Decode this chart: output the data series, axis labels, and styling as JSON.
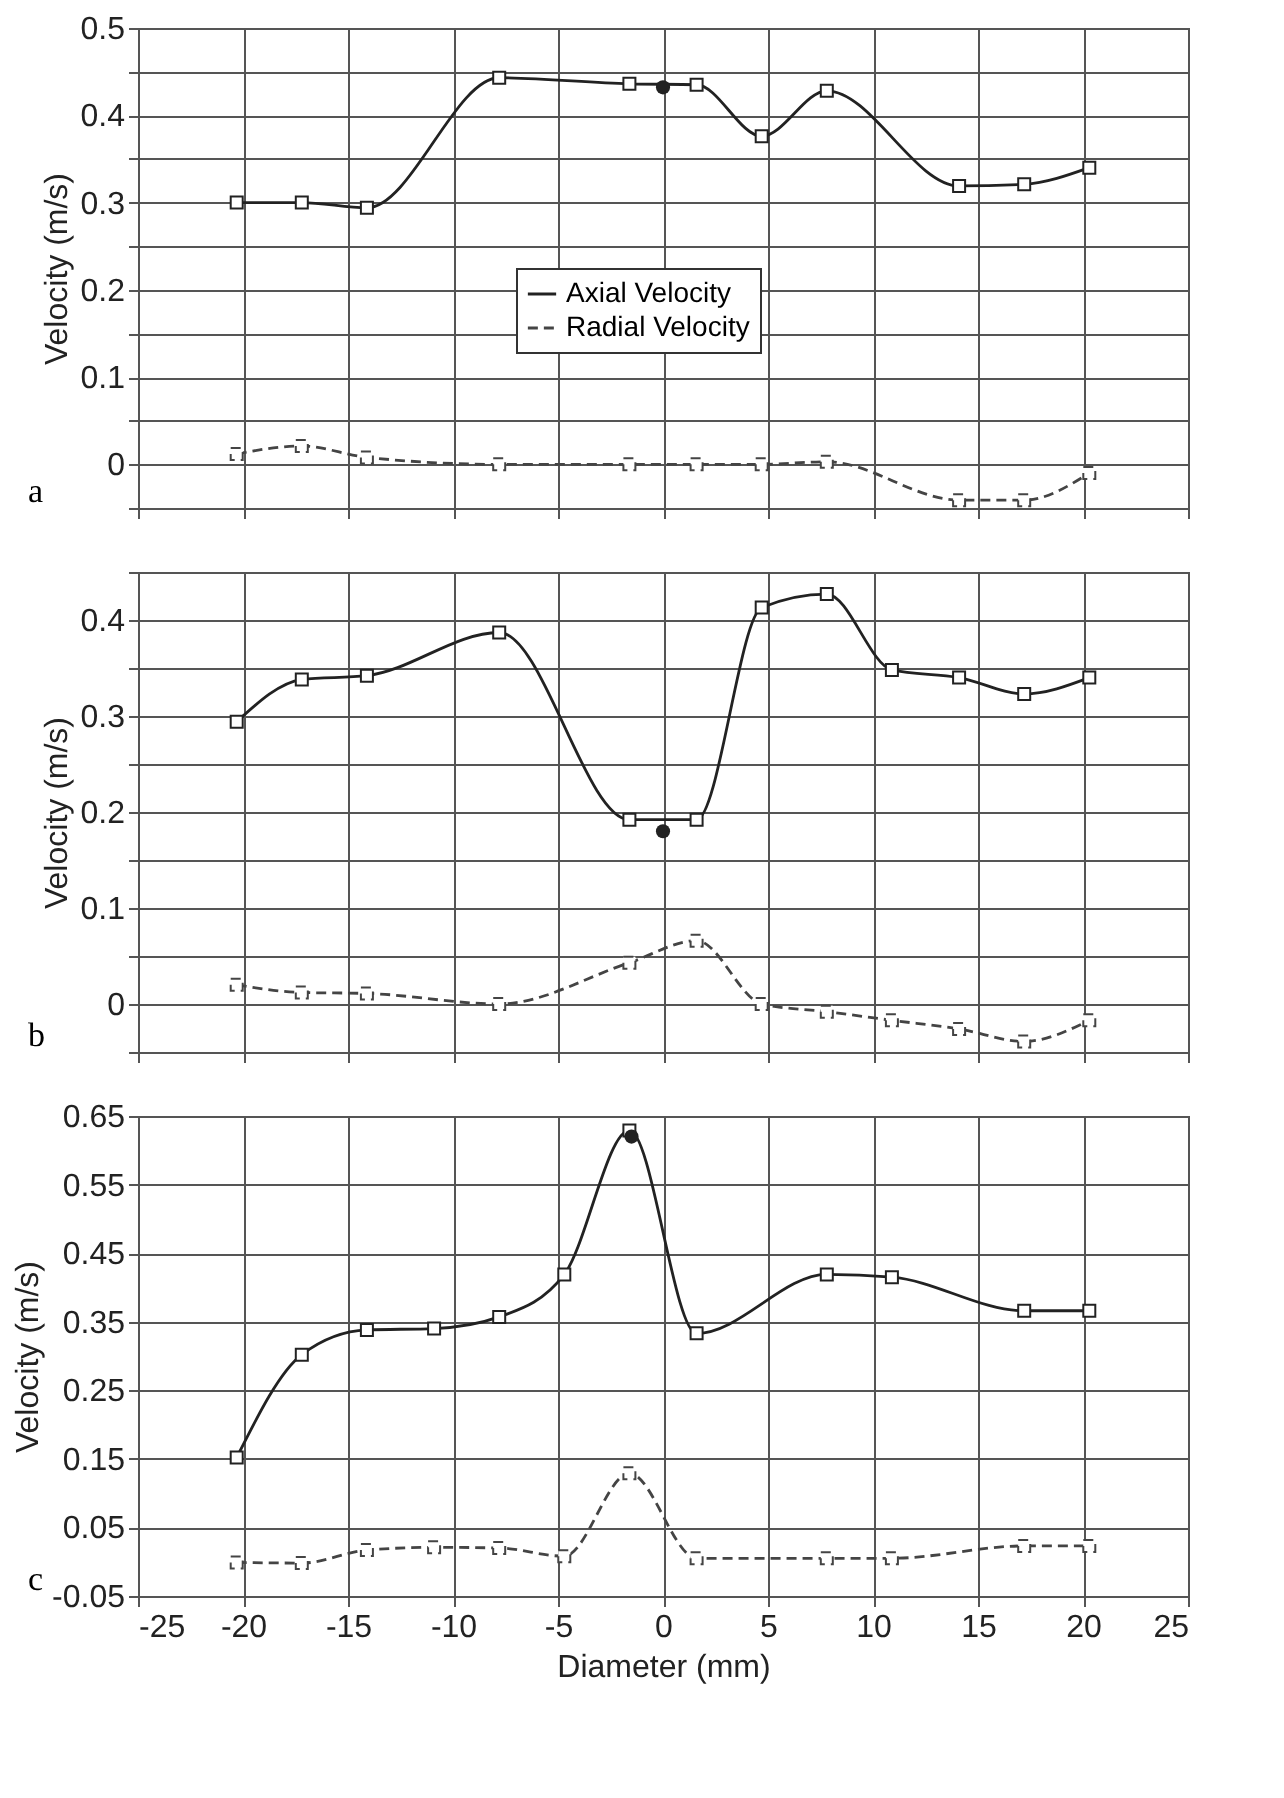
{
  "chart_data": [
    {
      "type": "line",
      "ylabel": "Velocity (m/s)",
      "annotations": [
        "a"
      ],
      "legend": "center",
      "grid": true,
      "marker": "square",
      "tick_labels": "y",
      "xlim": [
        -25,
        25
      ],
      "xticks": [
        -25,
        -20,
        -15,
        -10,
        -5,
        0,
        5,
        10,
        15,
        20,
        25
      ],
      "ylim": [
        -0.05,
        0.5
      ],
      "yticks": [
        {
          "value": -0.05,
          "label": null
        },
        0,
        {
          "value": 0.05,
          "label": null
        },
        0.1,
        {
          "value": 0.15,
          "label": null
        },
        0.2,
        {
          "value": 0.25,
          "label": null
        },
        0.3,
        {
          "value": 0.35,
          "label": null
        },
        0.4,
        {
          "value": 0.45,
          "label": null
        },
        0.5
      ],
      "series": [
        {
          "name": "Axial Velocity",
          "color": "#222222",
          "line_style": "solid",
          "x": [
            -20.3,
            -17.2,
            -14.1,
            -7.8,
            -1.6,
            1.6,
            4.7,
            7.8,
            14.1,
            17.2,
            20.3
          ],
          "values": [
            0.3,
            0.3,
            0.294,
            0.443,
            0.436,
            0.435,
            0.376,
            0.428,
            0.319,
            0.321,
            0.34
          ]
        },
        {
          "name": "Radial Velocity",
          "color": "#444444",
          "line_style": "dashed",
          "x": [
            -20.3,
            -17.2,
            -14.1,
            -7.8,
            -1.6,
            1.6,
            4.7,
            7.8,
            14.1,
            17.2,
            20.3
          ],
          "values": [
            0.012,
            0.021,
            0.008,
            0,
            0,
            0,
            0,
            0.003,
            -0.041,
            -0.041,
            -0.01
          ]
        },
        {
          "type": "scatter",
          "marker": "circle",
          "color": "#222222",
          "x": [
            0
          ],
          "values": [
            0.432
          ]
        }
      ]
    },
    {
      "type": "line",
      "ylabel": "Velocity (m/s)",
      "annotations": [
        "b"
      ],
      "legend": "left",
      "grid": true,
      "marker": "square",
      "tick_labels": "y",
      "xlim": [
        -25,
        25
      ],
      "xticks": [
        -25,
        -20,
        -15,
        -10,
        -5,
        0,
        5,
        10,
        15,
        20,
        25
      ],
      "ylim": [
        -0.05,
        0.45
      ],
      "yticks": [
        {
          "value": -0.05,
          "label": null
        },
        0,
        {
          "value": 0.05,
          "label": null
        },
        0.1,
        {
          "value": 0.15,
          "label": null
        },
        0.2,
        {
          "value": 0.25,
          "label": null
        },
        0.3,
        {
          "value": 0.35,
          "label": null
        },
        0.4,
        {
          "value": 0.45,
          "label": null
        }
      ],
      "series": [
        {
          "name": "Axial Velocity",
          "color": "#222222",
          "line_style": "solid",
          "x": [
            -20.3,
            -17.2,
            -14.1,
            -7.8,
            -1.6,
            1.6,
            4.7,
            7.8,
            10.9,
            14.1,
            17.2,
            20.3
          ],
          "values": [
            0.294,
            0.338,
            0.342,
            0.387,
            0.192,
            0.192,
            0.413,
            0.427,
            0.348,
            0.34,
            0.323,
            0.34
          ]
        },
        {
          "name": "Radial Velocity",
          "color": "#444444",
          "line_style": "dashed",
          "x": [
            -20.3,
            -17.2,
            -14.1,
            -7.8,
            -1.6,
            1.6,
            4.7,
            7.8,
            10.9,
            14.1,
            17.2,
            20.3
          ],
          "values": [
            0.02,
            0.012,
            0.011,
            0,
            0.043,
            0.066,
            0,
            -0.008,
            -0.017,
            -0.026,
            -0.039,
            -0.017
          ]
        },
        {
          "type": "scatter",
          "marker": "circle",
          "color": "#222222",
          "x": [
            0
          ],
          "values": [
            0.18
          ]
        }
      ]
    },
    {
      "type": "line",
      "xlabel": "Diameter (mm)",
      "ylabel": "Velocity (m/s)",
      "annotations": [
        "c"
      ],
      "legend": "right",
      "grid": true,
      "marker": "square",
      "xlim": [
        -25,
        25
      ],
      "xticks": [
        -25,
        -20,
        -15,
        -10,
        -5,
        0,
        5,
        10,
        15,
        20,
        25
      ],
      "ylim": [
        -0.05,
        0.65
      ],
      "yticks": [
        -0.05,
        0.05,
        0.15,
        0.25,
        0.35,
        0.45,
        0.55,
        0.65
      ],
      "series": [
        {
          "name": "Axial Velocity",
          "color": "#222222",
          "line_style": "solid",
          "x": [
            -20.3,
            -17.2,
            -14.1,
            -10.9,
            -7.8,
            -4.7,
            -1.6,
            1.6,
            7.8,
            10.9,
            17.2,
            20.3
          ],
          "values": [
            0.152,
            0.302,
            0.338,
            0.34,
            0.357,
            0.419,
            0.629,
            0.333,
            0.419,
            0.415,
            0.366,
            0.366
          ]
        },
        {
          "name": "Radial Velocity",
          "color": "#444444",
          "line_style": "dashed",
          "x": [
            -20.3,
            -17.2,
            -14.1,
            -10.9,
            -7.8,
            -4.7,
            -1.6,
            1.6,
            7.8,
            10.9,
            17.2,
            20.3
          ],
          "values": [
            -0.001,
            -0.002,
            0.017,
            0.021,
            0.02,
            0.008,
            0.129,
            0.005,
            0.005,
            0.005,
            0.023,
            0.023
          ]
        },
        {
          "type": "scatter",
          "marker": "circle",
          "color": "#222222",
          "x": [
            -1.5
          ],
          "values": [
            0.62
          ]
        }
      ]
    }
  ]
}
